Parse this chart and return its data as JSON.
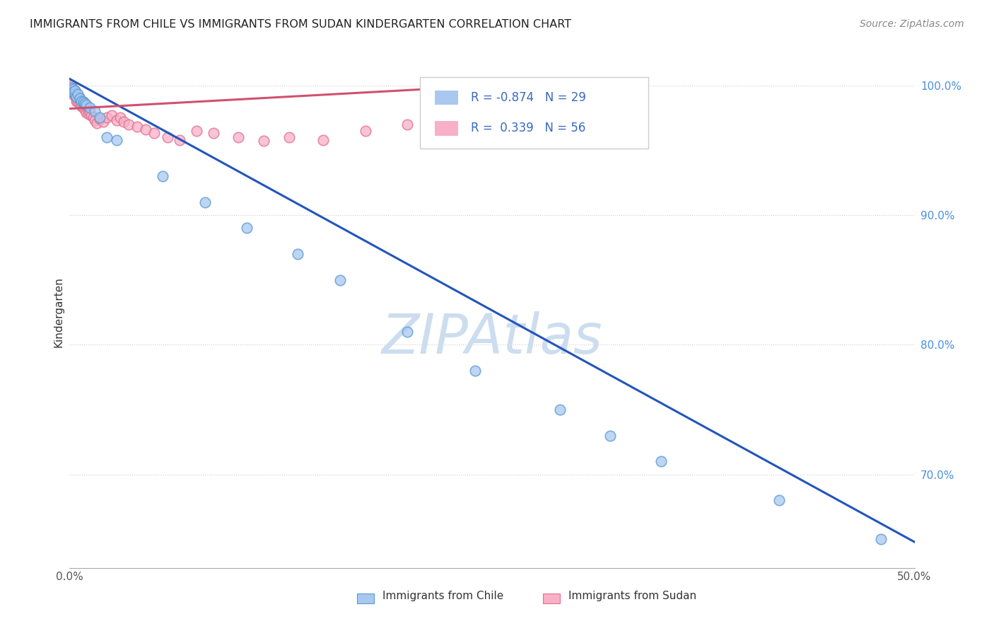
{
  "title": "IMMIGRANTS FROM CHILE VS IMMIGRANTS FROM SUDAN KINDERGARTEN CORRELATION CHART",
  "source": "Source: ZipAtlas.com",
  "ylabel": "Kindergarten",
  "xlim": [
    0.0,
    0.5
  ],
  "ylim": [
    0.628,
    1.022
  ],
  "chile_R": -0.874,
  "chile_N": 29,
  "sudan_R": 0.339,
  "sudan_N": 56,
  "chile_color": "#a8c8f0",
  "chile_edge_color": "#5a9ad5",
  "chile_line_color": "#2255bb",
  "sudan_color": "#f8b0c8",
  "sudan_edge_color": "#e07090",
  "sudan_line_color": "#d05070",
  "watermark": "ZIPAtlas",
  "watermark_color": "#ccddef",
  "legend_text_color": "#3a6abf",
  "legend_label_color": "#333333",
  "tick_label_color": "#555555",
  "right_tick_color": "#4a90d9",
  "grid_color": "#cccccc",
  "ytick_right_vals": [
    0.7,
    0.8,
    0.9,
    1.0
  ],
  "ytick_right_labels": [
    "70.0%",
    "80.0%",
    "90.0%",
    "100.0%"
  ],
  "chile_line_x0": 0.0,
  "chile_line_y0": 1.005,
  "chile_line_x1": 0.5,
  "chile_line_y1": 0.648,
  "sudan_line_x0": 0.0,
  "sudan_line_y0": 0.982,
  "sudan_line_x1": 0.28,
  "sudan_line_y1": 1.002,
  "chile_scatter_x": [
    0.001,
    0.002,
    0.002,
    0.003,
    0.003,
    0.004,
    0.005,
    0.006,
    0.007,
    0.008,
    0.009,
    0.01,
    0.012,
    0.015,
    0.018,
    0.022,
    0.028,
    0.055,
    0.08,
    0.105,
    0.135,
    0.16,
    0.2,
    0.24,
    0.29,
    0.32,
    0.35,
    0.42,
    0.48
  ],
  "chile_scatter_y": [
    0.998,
    0.997,
    0.995,
    0.993,
    0.996,
    0.991,
    0.993,
    0.99,
    0.988,
    0.987,
    0.986,
    0.985,
    0.983,
    0.98,
    0.975,
    0.96,
    0.958,
    0.93,
    0.91,
    0.89,
    0.87,
    0.85,
    0.81,
    0.78,
    0.75,
    0.73,
    0.71,
    0.68,
    0.65
  ],
  "sudan_scatter_x": [
    0.001,
    0.001,
    0.002,
    0.002,
    0.002,
    0.003,
    0.003,
    0.003,
    0.004,
    0.004,
    0.004,
    0.005,
    0.005,
    0.005,
    0.006,
    0.006,
    0.007,
    0.007,
    0.008,
    0.008,
    0.009,
    0.009,
    0.01,
    0.01,
    0.011,
    0.011,
    0.012,
    0.013,
    0.014,
    0.015,
    0.016,
    0.018,
    0.02,
    0.022,
    0.025,
    0.028,
    0.03,
    0.032,
    0.035,
    0.04,
    0.045,
    0.05,
    0.058,
    0.065,
    0.075,
    0.085,
    0.1,
    0.115,
    0.13,
    0.15,
    0.175,
    0.2,
    0.23,
    0.255,
    0.28,
    0.31
  ],
  "sudan_scatter_y": [
    1.0,
    0.998,
    0.997,
    0.995,
    0.993,
    0.996,
    0.994,
    0.992,
    0.991,
    0.99,
    0.988,
    0.992,
    0.989,
    0.987,
    0.99,
    0.986,
    0.988,
    0.984,
    0.987,
    0.983,
    0.985,
    0.981,
    0.983,
    0.979,
    0.981,
    0.978,
    0.979,
    0.977,
    0.975,
    0.973,
    0.971,
    0.974,
    0.972,
    0.975,
    0.977,
    0.973,
    0.975,
    0.972,
    0.97,
    0.968,
    0.966,
    0.963,
    0.96,
    0.958,
    0.965,
    0.963,
    0.96,
    0.957,
    0.96,
    0.958,
    0.965,
    0.97,
    0.975,
    0.98,
    0.985,
    0.99
  ]
}
